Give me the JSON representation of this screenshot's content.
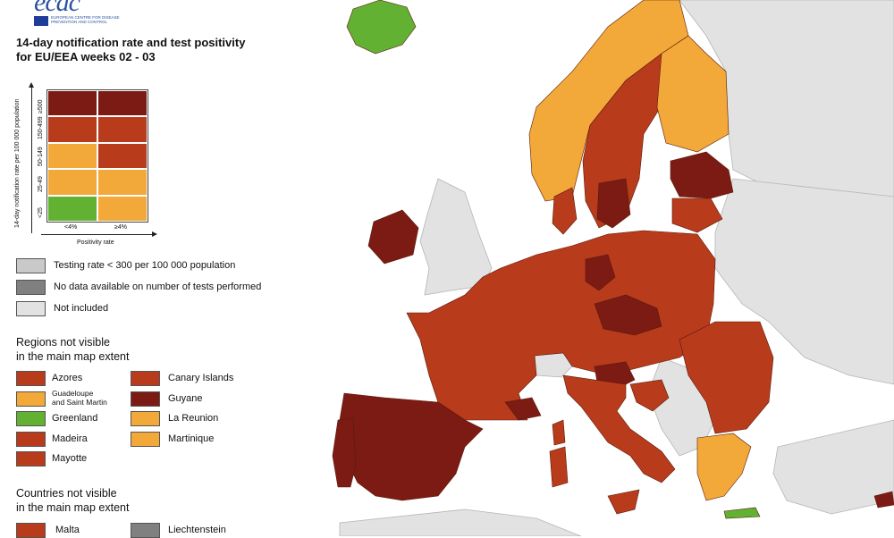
{
  "logo": {
    "name": "ecdc",
    "subtitle": "EUROPEAN CENTRE FOR DISEASE PREVENTION AND CONTROL"
  },
  "title_line1": "14-day notification rate and test positivity",
  "title_line2": "for EU/EEA weeks 02 - 03",
  "colors": {
    "dark_red": "#7b1b14",
    "red": "#b83b1c",
    "orange": "#f2a93a",
    "green": "#62b133",
    "light_grey": "#c9c9c9",
    "dark_grey": "#808080",
    "not_included": "#e2e2e2",
    "sea": "#ffffff"
  },
  "matrix": {
    "y_axis_title": "14-day notification rate per 100 000 population",
    "x_axis_title": "Positivity rate",
    "rows": [
      "≥500",
      "150-499",
      "50-149",
      "25-49",
      "<25"
    ],
    "cols": [
      "<4%",
      "≥4%"
    ],
    "cells": [
      [
        "dark_red",
        "dark_red"
      ],
      [
        "red",
        "red"
      ],
      [
        "orange",
        "red"
      ],
      [
        "orange",
        "orange"
      ],
      [
        "green",
        "orange"
      ]
    ]
  },
  "grey_legend": [
    {
      "label": "Testing rate < 300 per 100 000 population",
      "color": "light_grey"
    },
    {
      "label": "No data available on number of tests performed",
      "color": "dark_grey"
    },
    {
      "label": "Not included",
      "color": "not_included"
    }
  ],
  "regions_title_1": "Regions not visible",
  "regions_title_2": "in the main map extent",
  "regions_left": [
    {
      "label": "Azores",
      "color": "red"
    },
    {
      "label": "Guadeloupe",
      "label2": "and Saint Martin",
      "color": "orange"
    },
    {
      "label": "Greenland",
      "color": "green"
    },
    {
      "label": "Madeira",
      "color": "red"
    },
    {
      "label": "Mayotte",
      "color": "red"
    }
  ],
  "regions_right": [
    {
      "label": "Canary Islands",
      "color": "red"
    },
    {
      "label": "Guyane",
      "color": "dark_red"
    },
    {
      "label": "La Reunion",
      "color": "orange"
    },
    {
      "label": "Martinique",
      "color": "orange"
    }
  ],
  "countries_title_1": "Countries not visible",
  "countries_title_2": "in the main map extent",
  "countries": [
    {
      "label": "Malta",
      "color": "red"
    },
    {
      "label": "Liechtenstein",
      "color": "dark_grey"
    }
  ]
}
